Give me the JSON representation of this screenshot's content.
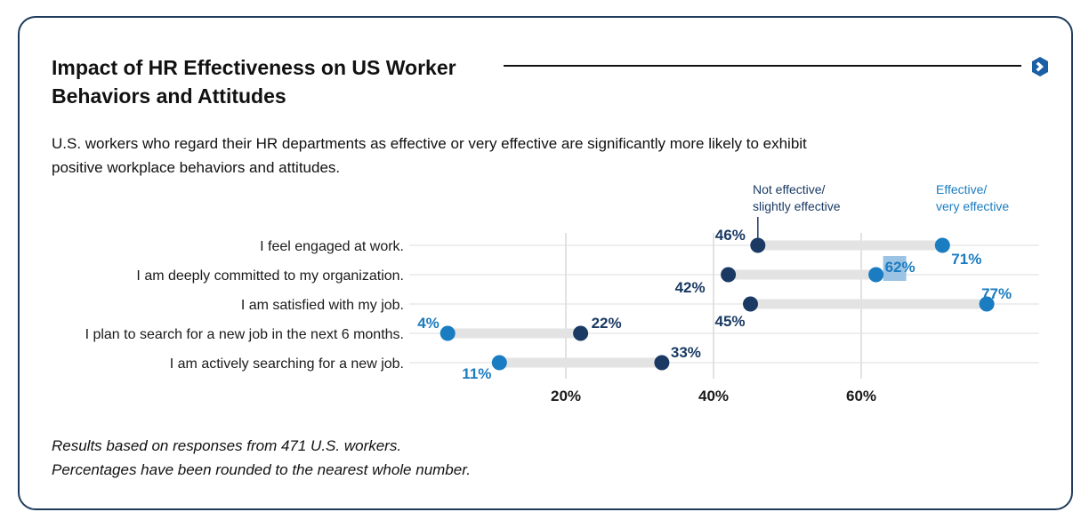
{
  "header": {
    "title": "Impact of HR Effectiveness on US Worker Behaviors and Attitudes",
    "subtitle": "U.S. workers who regard their HR departments as effective or very effective are significantly more likely to exhibit positive workplace behaviors and attitudes."
  },
  "footnote": {
    "line1": "Results based on responses from 471 U.S. workers.",
    "line2": "Percentages have been rounded to the nearest whole number."
  },
  "colors": {
    "not_effective": "#1a3a63",
    "effective": "#1a7cc1",
    "connector": "#e3e3e3",
    "highlight": "#9cc3e3"
  },
  "chart_data": {
    "type": "dumbbell",
    "title": "Impact of HR Effectiveness on US Worker Behaviors and Attitudes",
    "xlim": [
      0,
      80
    ],
    "xticks": [
      20,
      40,
      60
    ],
    "tick_labels": [
      "20%",
      "40%",
      "60%"
    ],
    "categories": [
      "I feel engaged at work.",
      "I am deeply committed to my organization.",
      "I am satisfied with my job.",
      "I plan to search for a new job in the next 6 months.",
      "I am actively searching for a new job."
    ],
    "series": [
      {
        "name": "Not effective/ slightly effective",
        "legend_lines": [
          "Not effective/",
          "slightly effective"
        ],
        "values": [
          46,
          42,
          45,
          22,
          33
        ],
        "labels": [
          "46%",
          "42%",
          "45%",
          "22%",
          "33%"
        ]
      },
      {
        "name": "Effective/ very effective",
        "legend_lines": [
          "Effective/",
          "very effective"
        ],
        "values": [
          71,
          62,
          77,
          4,
          11
        ],
        "labels": [
          "71%",
          "62%",
          "77%",
          "4%",
          "11%"
        ]
      }
    ],
    "grid": true,
    "legend": "top-right"
  }
}
